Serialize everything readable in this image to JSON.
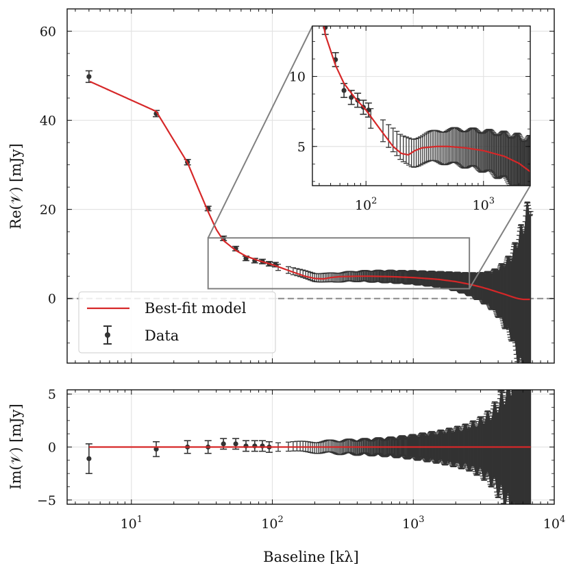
{
  "chart_data": [
    {
      "id": "main",
      "type": "line",
      "xscale": "log",
      "xlim": [
        3.5,
        10000
      ],
      "ylim": [
        -14.5,
        65
      ],
      "ylabel": "Re(𝒱) [mJy]",
      "yticks": [
        0,
        20,
        40,
        60
      ],
      "ytick_labels": [
        "0",
        "20",
        "40",
        "60"
      ],
      "zero_line": true,
      "legend": {
        "position": "bottom-left",
        "entries": [
          "Best-fit model",
          "Data"
        ]
      },
      "model": {
        "name": "Best-fit model",
        "color": "#d62728",
        "x": [
          5,
          15,
          20,
          25,
          30,
          35,
          40,
          45,
          55,
          65,
          80,
          100,
          130,
          170,
          200,
          230,
          260,
          300,
          400,
          500,
          700,
          1000,
          1500,
          2000,
          2500,
          3000,
          3500,
          4000,
          4500,
          5000,
          5500,
          6000,
          6500,
          6800
        ],
        "y": [
          48.8,
          42,
          35.5,
          30.5,
          24.5,
          19.5,
          15.5,
          13,
          10.8,
          9.5,
          8.5,
          7.6,
          6.3,
          5.0,
          4.5,
          4.4,
          4.7,
          4.9,
          5.0,
          5.0,
          4.9,
          4.7,
          4.3,
          3.8,
          3.2,
          2.6,
          2.0,
          1.4,
          0.9,
          0.4,
          0.0,
          -0.2,
          -0.2,
          -0.2
        ]
      },
      "data": {
        "name": "Data",
        "color": "#333333",
        "points": [
          {
            "x": 5,
            "y": 49.8,
            "err": 1.3
          },
          {
            "x": 15,
            "y": 41.5,
            "err": 0.7
          },
          {
            "x": 25,
            "y": 30.6,
            "err": 0.6
          },
          {
            "x": 35,
            "y": 20.2,
            "err": 0.5
          },
          {
            "x": 45,
            "y": 13.5,
            "err": 0.5
          },
          {
            "x": 55,
            "y": 11.2,
            "err": 0.5
          },
          {
            "x": 65,
            "y": 9.0,
            "err": 0.5
          },
          {
            "x": 75,
            "y": 8.5,
            "err": 0.5
          },
          {
            "x": 85,
            "y": 8.3,
            "err": 0.5
          },
          {
            "x": 95,
            "y": 7.8,
            "err": 0.5
          },
          {
            "x": 105,
            "y": 7.6,
            "err": 0.5
          }
        ],
        "dense_band": {
          "x": [
            110,
            150,
            200,
            250,
            300,
            400,
            500,
            700,
            1000,
            1500,
            2000,
            2500,
            3000,
            3500,
            4000,
            4500,
            5000,
            5500,
            6000,
            6500,
            6800
          ],
          "y": [
            7.0,
            5.8,
            4.8,
            4.6,
            4.8,
            5.0,
            5.0,
            4.9,
            4.7,
            4.3,
            3.8,
            3.2,
            2.6,
            2.0,
            1.4,
            0.9,
            0.4,
            0.0,
            -0.2,
            -0.2,
            -0.2
          ],
          "err": [
            0.7,
            0.8,
            0.9,
            1.0,
            1.0,
            1.1,
            1.2,
            1.3,
            1.4,
            1.6,
            1.9,
            2.3,
            2.9,
            3.7,
            5.0,
            7,
            9,
            13,
            16,
            20,
            22
          ]
        }
      },
      "zoom_box": {
        "xlim": [
          35,
          2500
        ],
        "ylim": [
          2.2,
          13.6
        ]
      }
    },
    {
      "id": "inset",
      "type": "line",
      "xscale": "log",
      "xlim": [
        35,
        2500
      ],
      "ylim": [
        2.2,
        13.6
      ],
      "yticks": [
        5,
        10
      ],
      "ytick_labels": [
        "5",
        "10"
      ]
    },
    {
      "id": "imag",
      "type": "line",
      "xscale": "log",
      "xlim": [
        3.5,
        10000
      ],
      "ylim": [
        -5.4,
        5.4
      ],
      "xlabel": "Baseline [kλ]",
      "ylabel": "Im(𝒱) [mJy]",
      "yticks": [
        -5,
        0,
        5
      ],
      "ytick_labels": [
        "−5",
        "0",
        "5"
      ],
      "model": {
        "name": "Best-fit model",
        "color": "#d62728",
        "value": 0
      },
      "data": {
        "name": "Data",
        "color": "#333333",
        "points": [
          {
            "x": 5,
            "y": -1.1,
            "err": 1.4
          },
          {
            "x": 15,
            "y": -0.2,
            "err": 0.7
          },
          {
            "x": 25,
            "y": 0.0,
            "err": 0.6
          },
          {
            "x": 35,
            "y": 0.0,
            "err": 0.6
          },
          {
            "x": 45,
            "y": 0.3,
            "err": 0.5
          },
          {
            "x": 55,
            "y": 0.3,
            "err": 0.5
          },
          {
            "x": 65,
            "y": 0.1,
            "err": 0.5
          },
          {
            "x": 75,
            "y": 0.1,
            "err": 0.5
          },
          {
            "x": 85,
            "y": 0.1,
            "err": 0.5
          },
          {
            "x": 95,
            "y": 0.0,
            "err": 0.5
          }
        ],
        "dense_band": {
          "x": [
            110,
            200,
            300,
            500,
            700,
            1000,
            1500,
            2000,
            2500,
            3000,
            3500,
            4000,
            4500,
            5000,
            5500,
            6000,
            6500,
            6800
          ],
          "y": [
            0,
            0,
            0,
            0,
            0,
            0,
            0,
            0,
            0,
            0,
            0,
            0,
            0,
            0,
            0,
            0,
            0,
            0
          ],
          "err": [
            0.4,
            0.5,
            0.6,
            0.7,
            0.8,
            1.0,
            1.3,
            1.6,
            1.9,
            2.4,
            3.0,
            4.0,
            5.0,
            6,
            7,
            8,
            8.5,
            9
          ]
        }
      },
      "xticks": [
        10,
        100,
        1000,
        10000
      ],
      "xtick_labels": [
        "10",
        "10",
        "10",
        "10"
      ],
      "xtick_exponents": [
        "1",
        "2",
        "3",
        "4"
      ]
    }
  ],
  "inset_xtick_labels": [
    "10",
    "10"
  ],
  "inset_xtick_exponents": [
    "2",
    "3"
  ]
}
